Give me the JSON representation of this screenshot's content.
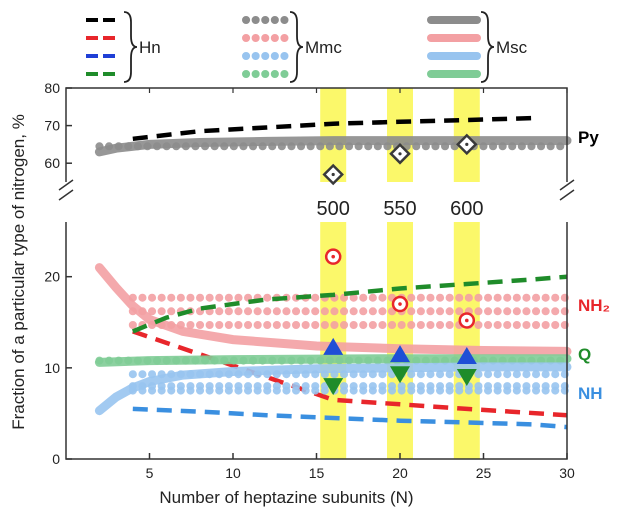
{
  "chart_data": {
    "type": "line",
    "xlabel": "Number of heptazine subunits (N)",
    "ylabel": "Fraction of a particular type of nitrogen, %",
    "xlim": [
      0,
      30
    ],
    "xticks": [
      "5",
      "10",
      "15",
      "20",
      "25",
      "30"
    ],
    "y_axis_break": true,
    "upper_ylim": [
      55,
      80
    ],
    "upper_yticks": [
      "60",
      "70",
      "80"
    ],
    "lower_ylim": [
      0,
      26
    ],
    "lower_yticks": [
      "0",
      "10",
      "20"
    ],
    "legend_groups": [
      {
        "label": "Hn",
        "style": "dashed"
      },
      {
        "label": "Mmc",
        "style": "dotted"
      },
      {
        "label": "Msc",
        "style": "solid"
      }
    ],
    "legend_position": "top",
    "highlight_bands": [
      {
        "x": 16,
        "label": "500"
      },
      {
        "x": 20,
        "label": "550"
      },
      {
        "x": 24,
        "label": "600"
      }
    ],
    "series": [
      {
        "name": "Py",
        "color": "#000000",
        "panel": "upper",
        "Hn": {
          "x": [
            4,
            8,
            12,
            16,
            20,
            24,
            28
          ],
          "y": [
            66.5,
            68.5,
            69.5,
            70.5,
            71,
            71.5,
            72
          ]
        },
        "Mmc": {
          "x": [
            2,
            5,
            10,
            15,
            20,
            25,
            30
          ],
          "y": [
            64.5,
            64.5,
            64.5,
            64.5,
            64.5,
            64.5,
            64.5
          ]
        },
        "Msc": {
          "x": [
            2,
            3,
            5,
            8,
            12,
            16,
            20,
            25,
            30
          ],
          "y": [
            63,
            64,
            65,
            65.5,
            65.8,
            66,
            66,
            66,
            66
          ]
        },
        "experiment": {
          "x": [
            16,
            20,
            24
          ],
          "y": [
            57,
            62.5,
            65
          ]
        }
      },
      {
        "name": "NH2",
        "color": "#e8262b",
        "panel": "lower",
        "Hn": {
          "x": [
            4,
            16,
            20,
            24,
            30
          ],
          "y": [
            14,
            6.5,
            6,
            5.5,
            4.8
          ]
        },
        "Mmc": {
          "x": [
            4,
            30
          ],
          "y": [
            17.7,
            17.7
          ],
          "x2": [
            4,
            30
          ],
          "y2": [
            16.2,
            16.2
          ],
          "x3": [
            4,
            30
          ],
          "y3": [
            14.7,
            14.7
          ]
        },
        "Msc": {
          "x": [
            2,
            3,
            4,
            5,
            7,
            10,
            15,
            20,
            25,
            30
          ],
          "y": [
            21,
            18.8,
            16.8,
            15.3,
            14,
            13.1,
            12.4,
            12.1,
            11.9,
            11.8
          ]
        },
        "experiment": {
          "x": [
            16,
            20,
            24
          ],
          "y": [
            22.2,
            17,
            15.2
          ]
        }
      },
      {
        "name": "Q",
        "color": "#1f8c2a",
        "panel": "lower",
        "Hn": {
          "x": [
            4,
            6,
            8,
            12,
            16,
            20,
            24,
            28,
            30
          ],
          "y": [
            14,
            15.5,
            16.5,
            17.5,
            18,
            18.7,
            19.2,
            19.7,
            20
          ]
        },
        "Mmc": {
          "x": [
            2,
            30
          ],
          "y": [
            10.8,
            10.8
          ]
        },
        "Msc": {
          "x": [
            2,
            5,
            10,
            20,
            30
          ],
          "y": [
            10.6,
            10.8,
            10.9,
            11,
            11
          ]
        },
        "experiment": {
          "x": [
            16,
            20,
            24
          ],
          "y": [
            8,
            9.3,
            9
          ]
        }
      },
      {
        "name": "NH",
        "color": "#3a8fe0",
        "panel": "lower",
        "Hn": {
          "x": [
            4,
            8,
            12,
            16,
            20,
            24,
            28,
            30
          ],
          "y": [
            5.5,
            5.2,
            4.8,
            4.5,
            4.2,
            4,
            3.8,
            3.5
          ]
        },
        "Mmc": {
          "x": [
            4,
            30
          ],
          "y": [
            9.3,
            9.3
          ],
          "x2": [
            4,
            30
          ],
          "y2": [
            8,
            8
          ],
          "x3": [
            4,
            30
          ],
          "y3": [
            7.5,
            7.5
          ]
        },
        "Msc": {
          "x": [
            2,
            3,
            4,
            5,
            7,
            10,
            15,
            20,
            25,
            30
          ],
          "y": [
            5.3,
            6.8,
            7.8,
            8.5,
            9.2,
            9.6,
            9.9,
            10,
            10.1,
            10.1
          ]
        },
        "experiment": {
          "x": [
            16,
            20,
            24
          ],
          "y": [
            12.3,
            11.5,
            11.3
          ]
        }
      }
    ],
    "series_labels": [
      {
        "text": "Py",
        "color": "#000000"
      },
      {
        "text": "NH₂",
        "color": "#e8262b"
      },
      {
        "text": "Q",
        "color": "#1f8c2a"
      },
      {
        "text": "NH",
        "color": "#3a8fe0"
      }
    ]
  }
}
